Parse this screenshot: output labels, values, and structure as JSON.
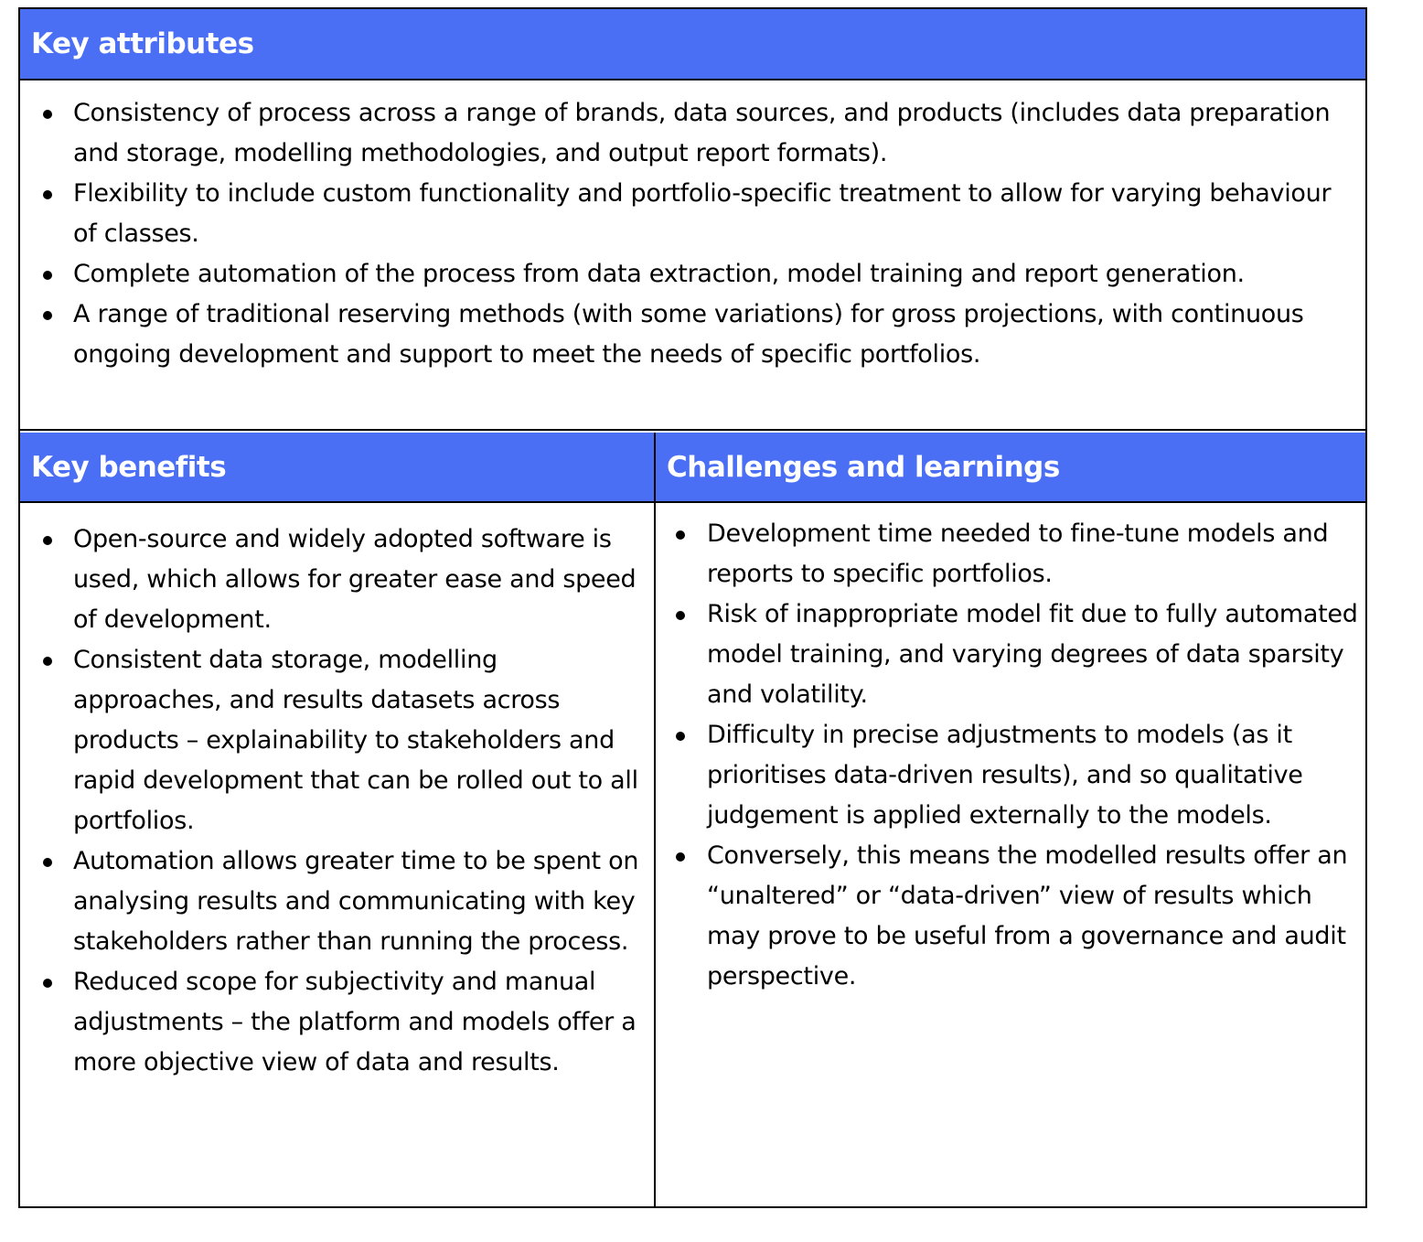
{
  "colors": {
    "header_bg": "#4a6ff5",
    "header_text": "#ffffff"
  },
  "key_attributes": {
    "title": "Key attributes",
    "items": [
      "Consistency of process across a range of brands, data sources, and products (includes data preparation and storage, modelling methodologies, and output report formats).",
      "Flexibility to include custom functionality and portfolio-specific treatment to allow for varying behaviour of classes.",
      "Complete automation of the process from data extraction, model training and report generation.",
      "A range of traditional reserving methods (with some variations) for gross projections, with continuous ongoing development and support to meet the needs of specific portfolios."
    ]
  },
  "key_benefits": {
    "title": "Key benefits",
    "items": [
      "Open-source and widely adopted software is used, which allows for greater ease and speed of development.",
      "Consistent data storage, modelling approaches, and results datasets across products – explainability to stakeholders and rapid development that can be rolled out to all portfolios.",
      "Automation allows greater time to be spent on analysing results and communicating with key stakeholders rather than running the process.",
      "Reduced scope for subjectivity and manual adjustments – the platform and models offer a more objective view of data and results."
    ]
  },
  "challenges": {
    "title": "Challenges and learnings",
    "items": [
      "Development time needed to fine-tune models and reports to specific portfolios.",
      "Risk of inappropriate model fit due to fully automated model training, and varying degrees of data sparsity and volatility.",
      "Difficulty in precise adjustments to models (as it prioritises data-driven results), and so qualitative judgement is applied externally to the models.",
      "Conversely, this means the modelled results offer an “unaltered” or “data-driven” view of results which may prove to be useful from a governance and audit perspective."
    ]
  }
}
